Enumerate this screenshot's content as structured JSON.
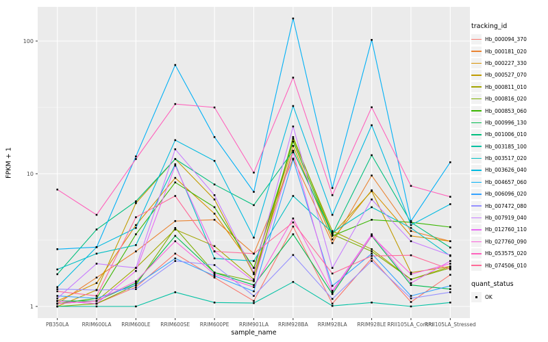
{
  "legend": {
    "tracking_title": "tracking_id",
    "quant_title": "quant_status",
    "quant_label": "OK",
    "key_bg": "#F2F2F2"
  },
  "chart_data": {
    "type": "line",
    "title": "",
    "xlabel": "sample_name",
    "ylabel": "FPKM + 1",
    "y_scale": "log10",
    "y_ticks": [
      1,
      10,
      100
    ],
    "y_minor_ticks": [
      3.162,
      31.62
    ],
    "ylim": [
      0.82,
      185
    ],
    "grid": true,
    "legend_position": "right",
    "panel_bg": "#EBEBEB",
    "grid_color": "#FFFFFF",
    "point_color": "#000000",
    "tick_label_color": "#4D4D4D",
    "categories": [
      "PB350LA",
      "RRIM600LA",
      "RRIM600LE",
      "RRIM600SE",
      "RRIM600PE",
      "RRIM901LA",
      "RRIM928BA",
      "RRIM928LA",
      "RRIM928LE",
      "RRII105LA_Control",
      "RRII105LA_Stressed"
    ],
    "series": [
      {
        "tracking_id": "Hb_000094_370",
        "color": "#F8766D",
        "values": [
          1.1,
          1.05,
          1.4,
          2.5,
          1.65,
          1.1,
          4.0,
          1.05,
          2.3,
          1.08,
          1.73
        ]
      },
      {
        "tracking_id": "Hb_000181_020",
        "color": "#EA8331",
        "values": [
          1.05,
          1.65,
          2.6,
          4.4,
          4.5,
          2.5,
          13.0,
          3.0,
          9.7,
          3.7,
          3.1
        ]
      },
      {
        "tracking_id": "Hb_000227_330",
        "color": "#D89000",
        "values": [
          1.1,
          1.5,
          4.1,
          9.3,
          5.0,
          1.95,
          16.2,
          3.2,
          7.5,
          3.4,
          3.1
        ]
      },
      {
        "tracking_id": "Hb_000527_070",
        "color": "#C09B00",
        "values": [
          1.0,
          1.33,
          6.0,
          12.9,
          6.4,
          1.75,
          14.9,
          3.5,
          7.4,
          1.8,
          2.0
        ]
      },
      {
        "tracking_id": "Hb_000811_010",
        "color": "#A3A500",
        "values": [
          1.05,
          1.1,
          1.95,
          3.8,
          2.85,
          1.6,
          18.3,
          3.7,
          2.7,
          1.6,
          2.0
        ]
      },
      {
        "tracking_id": "Hb_000816_020",
        "color": "#7CAE00",
        "values": [
          1.0,
          1.05,
          1.45,
          3.9,
          1.8,
          1.55,
          18.9,
          3.5,
          2.6,
          1.6,
          1.95
        ]
      },
      {
        "tracking_id": "Hb_000853_060",
        "color": "#39B600",
        "values": [
          1.05,
          1.15,
          3.5,
          8.6,
          5.6,
          1.95,
          17.5,
          3.4,
          4.5,
          4.3,
          3.96
        ]
      },
      {
        "tracking_id": "Hb_000996_130",
        "color": "#00BB4E",
        "values": [
          1.1,
          1.1,
          1.5,
          3.4,
          1.8,
          1.45,
          3.5,
          1.24,
          3.4,
          1.45,
          1.35
        ]
      },
      {
        "tracking_id": "Hb_001006_010",
        "color": "#00BF7D",
        "values": [
          1.75,
          3.8,
          6.2,
          12.9,
          8.3,
          5.8,
          14.9,
          3.5,
          13.8,
          4.3,
          2.78
        ]
      },
      {
        "tracking_id": "Hb_003185_100",
        "color": "#00C1A3",
        "values": [
          1.0,
          1.0,
          1.0,
          1.28,
          1.07,
          1.06,
          1.53,
          1.01,
          1.07,
          1.0,
          1.07
        ]
      },
      {
        "tracking_id": "Hb_003517_020",
        "color": "#00BFC4",
        "values": [
          1.9,
          2.5,
          2.9,
          11.8,
          2.3,
          2.2,
          6.8,
          3.6,
          5.6,
          3.9,
          2.4
        ]
      },
      {
        "tracking_id": "Hb_003626_040",
        "color": "#00BAE0",
        "values": [
          1.4,
          2.8,
          3.9,
          17.9,
          12.5,
          3.3,
          32.4,
          4.9,
          23.2,
          4.1,
          5.9
        ]
      },
      {
        "tracking_id": "Hb_004657_060",
        "color": "#00B0F6",
        "values": [
          2.7,
          2.8,
          13.5,
          66,
          18.9,
          7.3,
          148,
          7.8,
          102,
          4.4,
          12.2
        ]
      },
      {
        "tracking_id": "Hb_006096_020",
        "color": "#35A2FF",
        "values": [
          1.2,
          1.15,
          1.45,
          2.3,
          1.7,
          1.3,
          12.8,
          1.43,
          2.5,
          1.2,
          1.43
        ]
      },
      {
        "tracking_id": "Hb_007472_080",
        "color": "#9590FF",
        "values": [
          1.35,
          1.33,
          1.35,
          2.2,
          2.05,
          1.2,
          2.44,
          1.14,
          2.2,
          1.15,
          1.28
        ]
      },
      {
        "tracking_id": "Hb_007919_040",
        "color": "#C77CFF",
        "values": [
          1.15,
          2.1,
          1.95,
          15.3,
          6.9,
          1.8,
          22.7,
          1.95,
          6.4,
          3.1,
          2.43
        ]
      },
      {
        "tracking_id": "Hb_012760_110",
        "color": "#E76BF3",
        "values": [
          1.1,
          1.05,
          1.85,
          11.5,
          2.6,
          1.55,
          14.5,
          1.31,
          3.5,
          1.5,
          2.2
        ]
      },
      {
        "tracking_id": "Hb_027760_090",
        "color": "#FA62DB",
        "values": [
          1.05,
          1.1,
          1.55,
          3.1,
          1.75,
          1.4,
          4.6,
          1.28,
          3.4,
          1.75,
          2.1
        ]
      },
      {
        "tracking_id": "Hb_053575_020",
        "color": "#FF62BC",
        "values": [
          7.6,
          4.9,
          12.9,
          33.5,
          31.6,
          10.2,
          53,
          6.9,
          31.7,
          8.1,
          6.7
        ]
      },
      {
        "tracking_id": "Hb_074506_010",
        "color": "#FF6A98",
        "values": [
          1.3,
          1.2,
          4.7,
          6.8,
          2.6,
          2.5,
          4.3,
          1.77,
          2.4,
          2.43,
          1.9
        ]
      }
    ]
  }
}
